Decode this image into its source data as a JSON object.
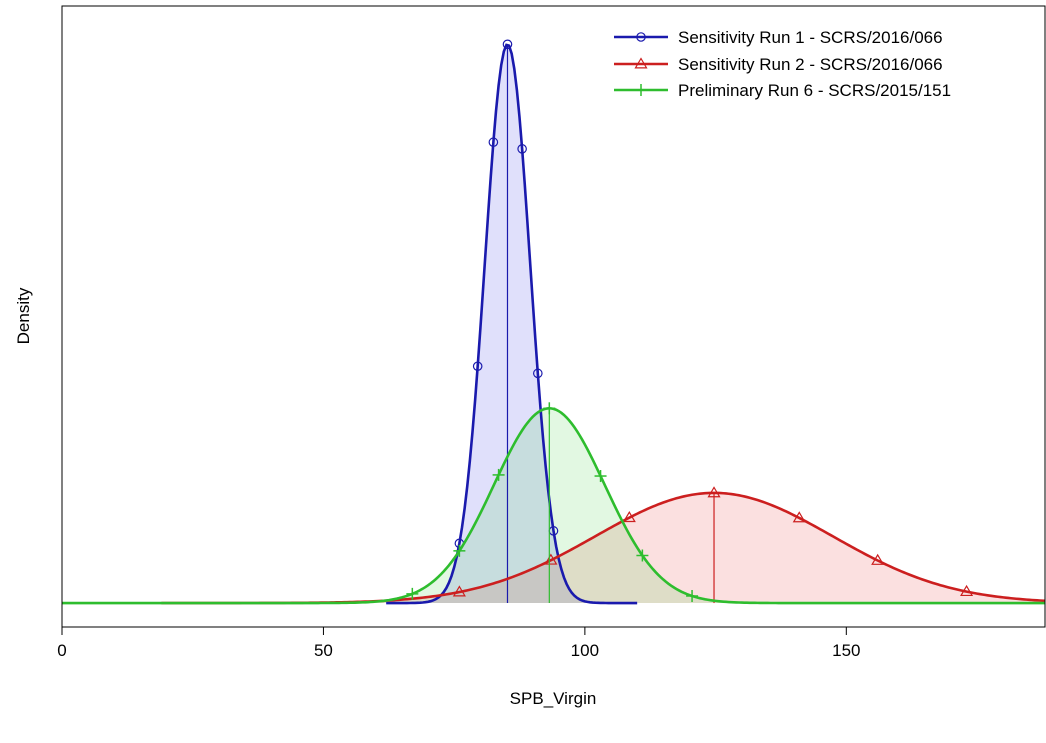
{
  "chart_data": {
    "type": "area",
    "xlabel": "SPB_Virgin",
    "ylabel": "Density",
    "xlim": [
      0,
      188
    ],
    "ylim": [
      -0.0015,
      0.0374
    ],
    "xticks": [
      0,
      50,
      100,
      150
    ],
    "yticks_shown": false,
    "legend_position": "top-right",
    "series": [
      {
        "name": "Sensitivity Run 1 - SCRS/2016/066",
        "color": "#1a1aad",
        "fill": "rgba(60,60,230,0.16)",
        "marker": "circle",
        "mean": 85.2,
        "sd": 4.35,
        "peak_density": 0.035,
        "range": [
          62,
          110
        ],
        "marker_x": [
          76,
          79.5,
          82.5,
          85.2,
          88,
          91,
          94
        ]
      },
      {
        "name": "Sensitivity Run 2 - SCRS/2016/066",
        "color": "#cc1f1f",
        "fill": "rgba(230,60,60,0.16)",
        "marker": "triangle",
        "mean": 124.7,
        "sd": 22.7,
        "peak_density": 0.0069,
        "range": [
          19,
          188
        ],
        "marker_x": [
          76,
          93.5,
          108.5,
          124.7,
          141,
          156,
          173
        ]
      },
      {
        "name": "Preliminary Run 6 - SCRS/2015/151",
        "color": "#2ebd2e",
        "fill": "rgba(60,210,60,0.15)",
        "marker": "plus",
        "mean": 93.2,
        "sd": 10.6,
        "peak_density": 0.0122,
        "range": [
          0,
          188
        ],
        "marker_x": [
          67,
          76,
          83.5,
          93.2,
          103,
          111,
          120.5
        ]
      }
    ]
  }
}
